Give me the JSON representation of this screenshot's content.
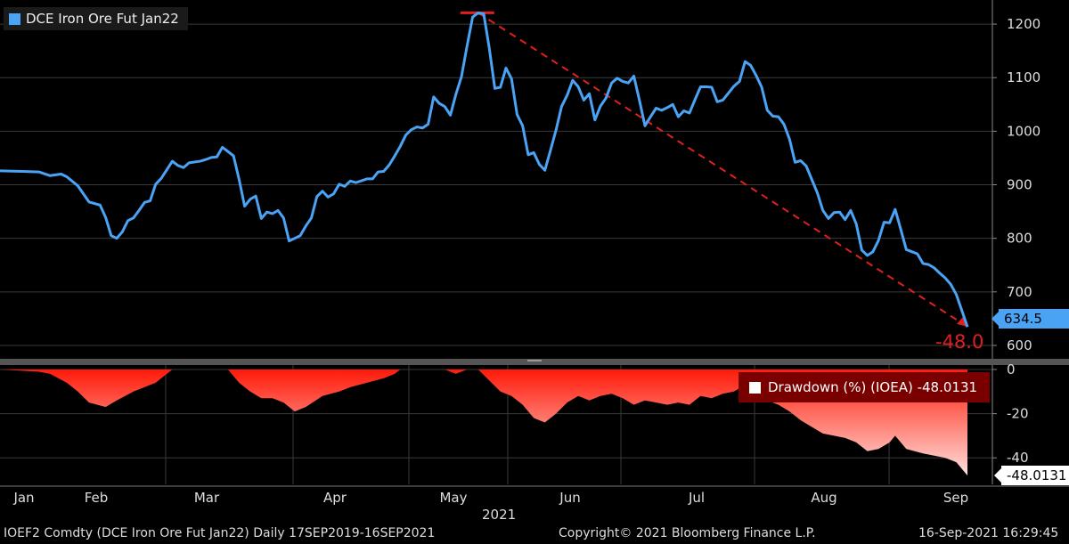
{
  "chart_data": {
    "type": "line",
    "legend": {
      "label": "DCE Iron Ore Fut  Jan22",
      "color": "#4aa3f5"
    },
    "x_labels": [
      "Jan",
      "Feb",
      "Mar",
      "Apr",
      "May",
      "Jun",
      "Jul",
      "Aug",
      "Sep"
    ],
    "year_label": "2021",
    "price_axis": {
      "ticks": [
        600,
        700,
        800,
        900,
        1000,
        1100,
        1200
      ],
      "ylim": [
        575,
        1245
      ]
    },
    "drawdown_axis": {
      "ticks": [
        "0",
        "-20",
        "-40"
      ],
      "tick_values": [
        0,
        -20,
        -40
      ],
      "ylim": [
        -52,
        2
      ]
    },
    "last_price_label": "634.5",
    "last_drawdown_label": "-48.0131",
    "annotation": "-48.0",
    "drawdown_legend": "Drawdown (%) (IOEA) -48.0131",
    "price_series": [
      [
        0,
        926
      ],
      [
        4,
        925
      ],
      [
        7,
        924
      ],
      [
        9,
        917
      ],
      [
        11,
        920
      ],
      [
        12,
        915
      ],
      [
        14,
        898
      ],
      [
        16,
        868
      ],
      [
        18,
        862
      ],
      [
        19,
        839
      ],
      [
        20,
        805
      ],
      [
        21,
        800
      ],
      [
        22,
        812
      ],
      [
        23,
        833
      ],
      [
        24,
        838
      ],
      [
        25,
        852
      ],
      [
        26,
        867
      ],
      [
        27,
        870
      ],
      [
        28,
        901
      ],
      [
        29,
        912
      ],
      [
        30,
        928
      ],
      [
        31,
        944
      ],
      [
        32,
        936
      ],
      [
        33,
        932
      ],
      [
        34,
        941
      ],
      [
        36,
        944
      ],
      [
        37,
        947
      ],
      [
        38,
        951
      ],
      [
        39,
        952
      ],
      [
        40,
        970
      ],
      [
        41,
        962
      ],
      [
        42,
        954
      ],
      [
        43,
        910
      ],
      [
        44,
        860
      ],
      [
        45,
        873
      ],
      [
        46,
        879
      ],
      [
        47,
        837
      ],
      [
        48,
        849
      ],
      [
        49,
        846
      ],
      [
        50,
        852
      ],
      [
        51,
        838
      ],
      [
        52,
        795
      ],
      [
        53,
        800
      ],
      [
        54,
        805
      ],
      [
        55,
        823
      ],
      [
        56,
        838
      ],
      [
        57,
        878
      ],
      [
        58,
        888
      ],
      [
        59,
        877
      ],
      [
        60,
        883
      ],
      [
        61,
        901
      ],
      [
        62,
        897
      ],
      [
        63,
        907
      ],
      [
        64,
        904
      ],
      [
        66,
        911
      ],
      [
        67,
        911
      ],
      [
        68,
        924
      ],
      [
        69,
        925
      ],
      [
        70,
        937
      ],
      [
        71,
        954
      ],
      [
        72,
        972
      ],
      [
        73,
        993
      ],
      [
        74,
        1003
      ],
      [
        75,
        1008
      ],
      [
        76,
        1006
      ],
      [
        77,
        1013
      ],
      [
        78,
        1064
      ],
      [
        79,
        1052
      ],
      [
        80,
        1046
      ],
      [
        81,
        1030
      ],
      [
        82,
        1069
      ],
      [
        83,
        1102
      ],
      [
        84,
        1159
      ],
      [
        85,
        1213
      ],
      [
        86,
        1221
      ],
      [
        87,
        1219
      ],
      [
        88,
        1155
      ],
      [
        89,
        1080
      ],
      [
        90,
        1082
      ],
      [
        91,
        1118
      ],
      [
        92,
        1098
      ],
      [
        93,
        1031
      ],
      [
        94,
        1010
      ],
      [
        95,
        956
      ],
      [
        96,
        960
      ],
      [
        97,
        938
      ],
      [
        98,
        927
      ],
      [
        99,
        964
      ],
      [
        100,
        1002
      ],
      [
        101,
        1046
      ],
      [
        102,
        1067
      ],
      [
        103,
        1095
      ],
      [
        104,
        1083
      ],
      [
        105,
        1058
      ],
      [
        106,
        1070
      ],
      [
        107,
        1021
      ],
      [
        108,
        1047
      ],
      [
        109,
        1062
      ],
      [
        110,
        1090
      ],
      [
        111,
        1099
      ],
      [
        112,
        1093
      ],
      [
        113,
        1090
      ],
      [
        114,
        1103
      ],
      [
        115,
        1058
      ],
      [
        116,
        1010
      ],
      [
        117,
        1027
      ],
      [
        118,
        1043
      ],
      [
        119,
        1039
      ],
      [
        120,
        1044
      ],
      [
        121,
        1050
      ],
      [
        122,
        1027
      ],
      [
        123,
        1038
      ],
      [
        124,
        1034
      ],
      [
        125,
        1059
      ],
      [
        126,
        1083
      ],
      [
        127,
        1083
      ],
      [
        128,
        1082
      ],
      [
        129,
        1055
      ],
      [
        130,
        1058
      ],
      [
        131,
        1071
      ],
      [
        132,
        1084
      ],
      [
        133,
        1093
      ],
      [
        134,
        1130
      ],
      [
        135,
        1123
      ],
      [
        136,
        1104
      ],
      [
        137,
        1082
      ],
      [
        138,
        1039
      ],
      [
        139,
        1028
      ],
      [
        140,
        1027
      ],
      [
        141,
        1013
      ],
      [
        142,
        985
      ],
      [
        143,
        942
      ],
      [
        144,
        945
      ],
      [
        145,
        935
      ],
      [
        146,
        910
      ],
      [
        147,
        885
      ],
      [
        148,
        852
      ],
      [
        149,
        837
      ],
      [
        150,
        848
      ],
      [
        151,
        849
      ],
      [
        152,
        835
      ],
      [
        153,
        852
      ],
      [
        154,
        827
      ],
      [
        155,
        778
      ],
      [
        156,
        768
      ],
      [
        157,
        775
      ],
      [
        158,
        796
      ],
      [
        159,
        830
      ],
      [
        160,
        829
      ],
      [
        161,
        854
      ],
      [
        162,
        817
      ],
      [
        163,
        779
      ],
      [
        164,
        775
      ],
      [
        165,
        771
      ],
      [
        166,
        753
      ],
      [
        167,
        751
      ],
      [
        168,
        745
      ],
      [
        169,
        735
      ],
      [
        170,
        726
      ],
      [
        171,
        714
      ],
      [
        172,
        695
      ],
      [
        173,
        665
      ],
      [
        174,
        634.5
      ]
    ],
    "trend_line": {
      "from": [
        86,
        1221
      ],
      "to": [
        174,
        635
      ]
    },
    "drawdown_series": [
      [
        0,
        0
      ],
      [
        7,
        -1
      ],
      [
        9,
        -2
      ],
      [
        12,
        -6
      ],
      [
        14,
        -10
      ],
      [
        16,
        -15
      ],
      [
        19,
        -17
      ],
      [
        21,
        -14
      ],
      [
        24,
        -10
      ],
      [
        28,
        -6
      ],
      [
        30,
        -2
      ],
      [
        31,
        0
      ],
      [
        41,
        0
      ],
      [
        43,
        -6
      ],
      [
        45,
        -10
      ],
      [
        47,
        -13
      ],
      [
        49,
        -13
      ],
      [
        51,
        -15
      ],
      [
        53,
        -19
      ],
      [
        55,
        -17
      ],
      [
        58,
        -12
      ],
      [
        61,
        -10
      ],
      [
        63,
        -8
      ],
      [
        66,
        -6
      ],
      [
        69,
        -4
      ],
      [
        71,
        -2
      ],
      [
        72,
        0
      ],
      [
        80,
        0
      ],
      [
        82,
        -2
      ],
      [
        84,
        0
      ],
      [
        86,
        0
      ],
      [
        88,
        -5
      ],
      [
        90,
        -10
      ],
      [
        92,
        -12
      ],
      [
        94,
        -16
      ],
      [
        96,
        -22
      ],
      [
        98,
        -24
      ],
      [
        100,
        -20
      ],
      [
        102,
        -15
      ],
      [
        104,
        -12
      ],
      [
        106,
        -14
      ],
      [
        108,
        -12
      ],
      [
        110,
        -11
      ],
      [
        112,
        -13
      ],
      [
        114,
        -16
      ],
      [
        116,
        -14
      ],
      [
        118,
        -15
      ],
      [
        120,
        -16
      ],
      [
        122,
        -15
      ],
      [
        124,
        -16
      ],
      [
        126,
        -12
      ],
      [
        128,
        -13
      ],
      [
        130,
        -11
      ],
      [
        132,
        -10
      ],
      [
        134,
        -7
      ],
      [
        136,
        -9
      ],
      [
        138,
        -14
      ],
      [
        140,
        -16
      ],
      [
        142,
        -19
      ],
      [
        144,
        -23
      ],
      [
        146,
        -26
      ],
      [
        148,
        -29
      ],
      [
        150,
        -30
      ],
      [
        152,
        -31
      ],
      [
        154,
        -33
      ],
      [
        156,
        -37
      ],
      [
        158,
        -36
      ],
      [
        160,
        -33
      ],
      [
        161,
        -30
      ],
      [
        163,
        -36
      ],
      [
        166,
        -38
      ],
      [
        168,
        -39
      ],
      [
        170,
        -40
      ],
      [
        172,
        -42
      ],
      [
        174,
        -48
      ]
    ]
  },
  "footer": {
    "left": "IOEF2 Comdty (DCE Iron Ore Fut  Jan22)  Daily 17SEP2019-16SEP2021",
    "center": "Copyright© 2021 Bloomberg Finance L.P.",
    "right": "16-Sep-2021 16:29:45"
  }
}
